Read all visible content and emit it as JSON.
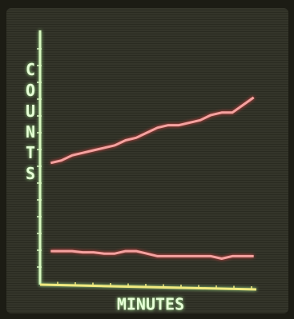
{
  "chart_data": {
    "type": "line",
    "y_label": "COUNTS",
    "x_label": "MINUTES",
    "x": [
      1,
      2,
      3,
      4,
      5,
      6,
      7,
      8,
      9,
      10,
      11,
      12,
      13,
      14,
      15,
      16,
      17,
      18,
      19,
      20
    ],
    "series": [
      {
        "color": "#f4a2a0",
        "values": [
          48,
          49,
          51,
          52,
          53,
          54,
          55,
          57,
          58,
          60,
          62,
          63,
          63,
          64,
          65,
          67,
          68,
          68,
          71,
          74
        ]
      },
      {
        "color": "#f4a2a0",
        "values": [
          13,
          13,
          13,
          12.5,
          12.5,
          12,
          12,
          13,
          13,
          12,
          11,
          11,
          11,
          11,
          11,
          11,
          10,
          11,
          11,
          11
        ]
      }
    ],
    "xlim": [
      0,
      21
    ],
    "ylim": [
      0,
      100
    ]
  }
}
